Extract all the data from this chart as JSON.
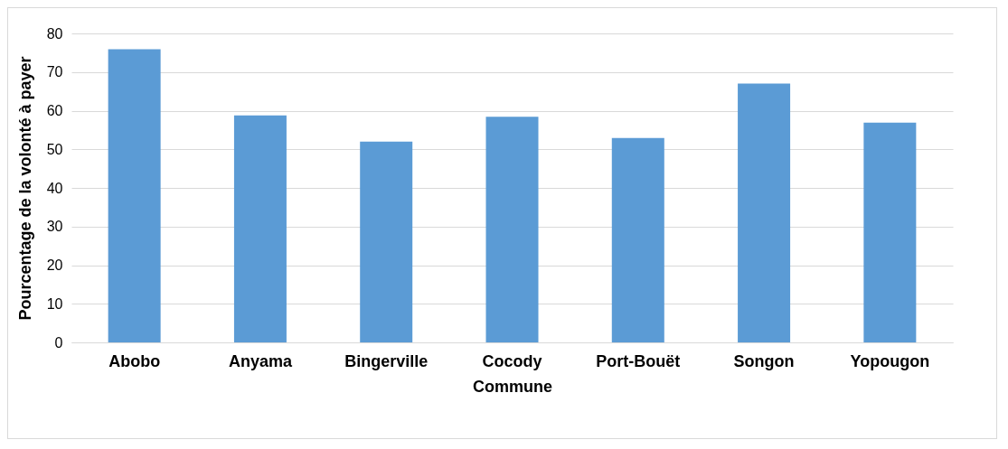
{
  "chart_data": {
    "type": "bar",
    "xlabel": "Commune",
    "ylabel": "Pourcentage de la volonté à payer",
    "categories": [
      "Abobo",
      "Anyama",
      "Bingerville",
      "Cocody",
      "Port-Bouët",
      "Songon",
      "Yopougon"
    ],
    "values": [
      75.9,
      58.8,
      52.0,
      58.4,
      52.9,
      67.0,
      56.9
    ],
    "color": "#5b9bd5",
    "ylim": [
      0,
      80
    ],
    "yticks": [
      0,
      10,
      20,
      30,
      40,
      50,
      60,
      70,
      80
    ],
    "grid": "y"
  }
}
